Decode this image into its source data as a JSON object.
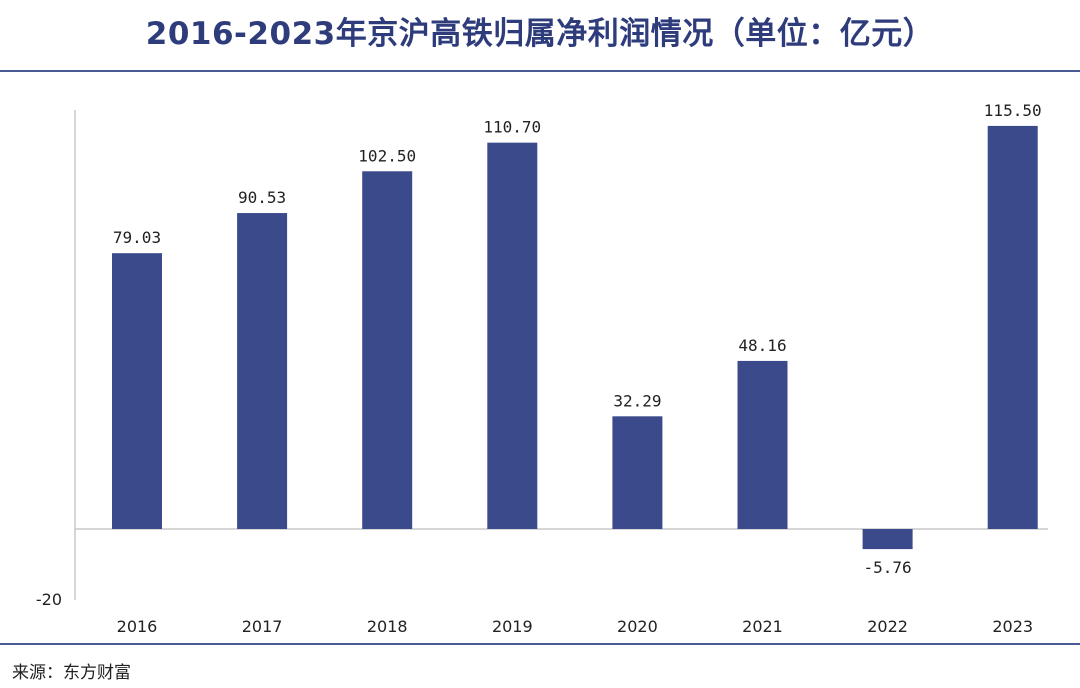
{
  "title": "2016-2023年京沪高铁归属净利润情况（单位：亿元）",
  "source": "来源：东方财富",
  "colors": {
    "bar": "#3b4a8a",
    "title": "#2e3c7c",
    "rule": "#4a5a96"
  },
  "chart_data": {
    "type": "bar",
    "title": "2016-2023年京沪高铁归属净利润情况（单位：亿元）",
    "xlabel": "",
    "ylabel": "",
    "categories": [
      "2016",
      "2017",
      "2018",
      "2019",
      "2020",
      "2021",
      "2022",
      "2023"
    ],
    "values": [
      79.03,
      90.53,
      102.5,
      110.7,
      32.29,
      48.16,
      -5.76,
      115.5
    ],
    "value_labels": [
      "79.03",
      "90.53",
      "102.50",
      "110.70",
      "32.29",
      "48.16",
      "-5.76",
      "115.50"
    ],
    "ylim": [
      -20,
      120
    ],
    "y_tick_labels": [
      "-20"
    ],
    "grid": false
  }
}
